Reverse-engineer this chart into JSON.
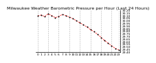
{
  "title": "Milwaukee Weather Barometric Pressure per Hour (Last 24 Hours)",
  "pressure": [
    30.09,
    30.11,
    30.08,
    30.13,
    30.1,
    30.06,
    30.08,
    30.12,
    30.1,
    30.07,
    30.04,
    30.0,
    29.96,
    29.92,
    29.88,
    29.83,
    29.79,
    29.74,
    29.68,
    29.62,
    29.57,
    29.52,
    29.47,
    29.44
  ],
  "hours": [
    0,
    1,
    2,
    3,
    4,
    5,
    6,
    7,
    8,
    9,
    10,
    11,
    12,
    13,
    14,
    15,
    16,
    17,
    18,
    19,
    20,
    21,
    22,
    23
  ],
  "line_color": "#ff0000",
  "marker_color": "#000000",
  "grid_color": "#aaaaaa",
  "bg_color": "#ffffff",
  "ylim_min": 29.4,
  "ylim_max": 30.2,
  "ytick_step": 0.05,
  "vgrid_hours": [
    0,
    3,
    6,
    9,
    12,
    15,
    18,
    21,
    23
  ],
  "xtick_hours": [
    0,
    1,
    2,
    3,
    4,
    5,
    6,
    7,
    8,
    9,
    10,
    11,
    12,
    13,
    14,
    15,
    16,
    17,
    18,
    19,
    20,
    21,
    22,
    23
  ],
  "title_fontsize": 4.5,
  "tick_fontsize": 3.2
}
